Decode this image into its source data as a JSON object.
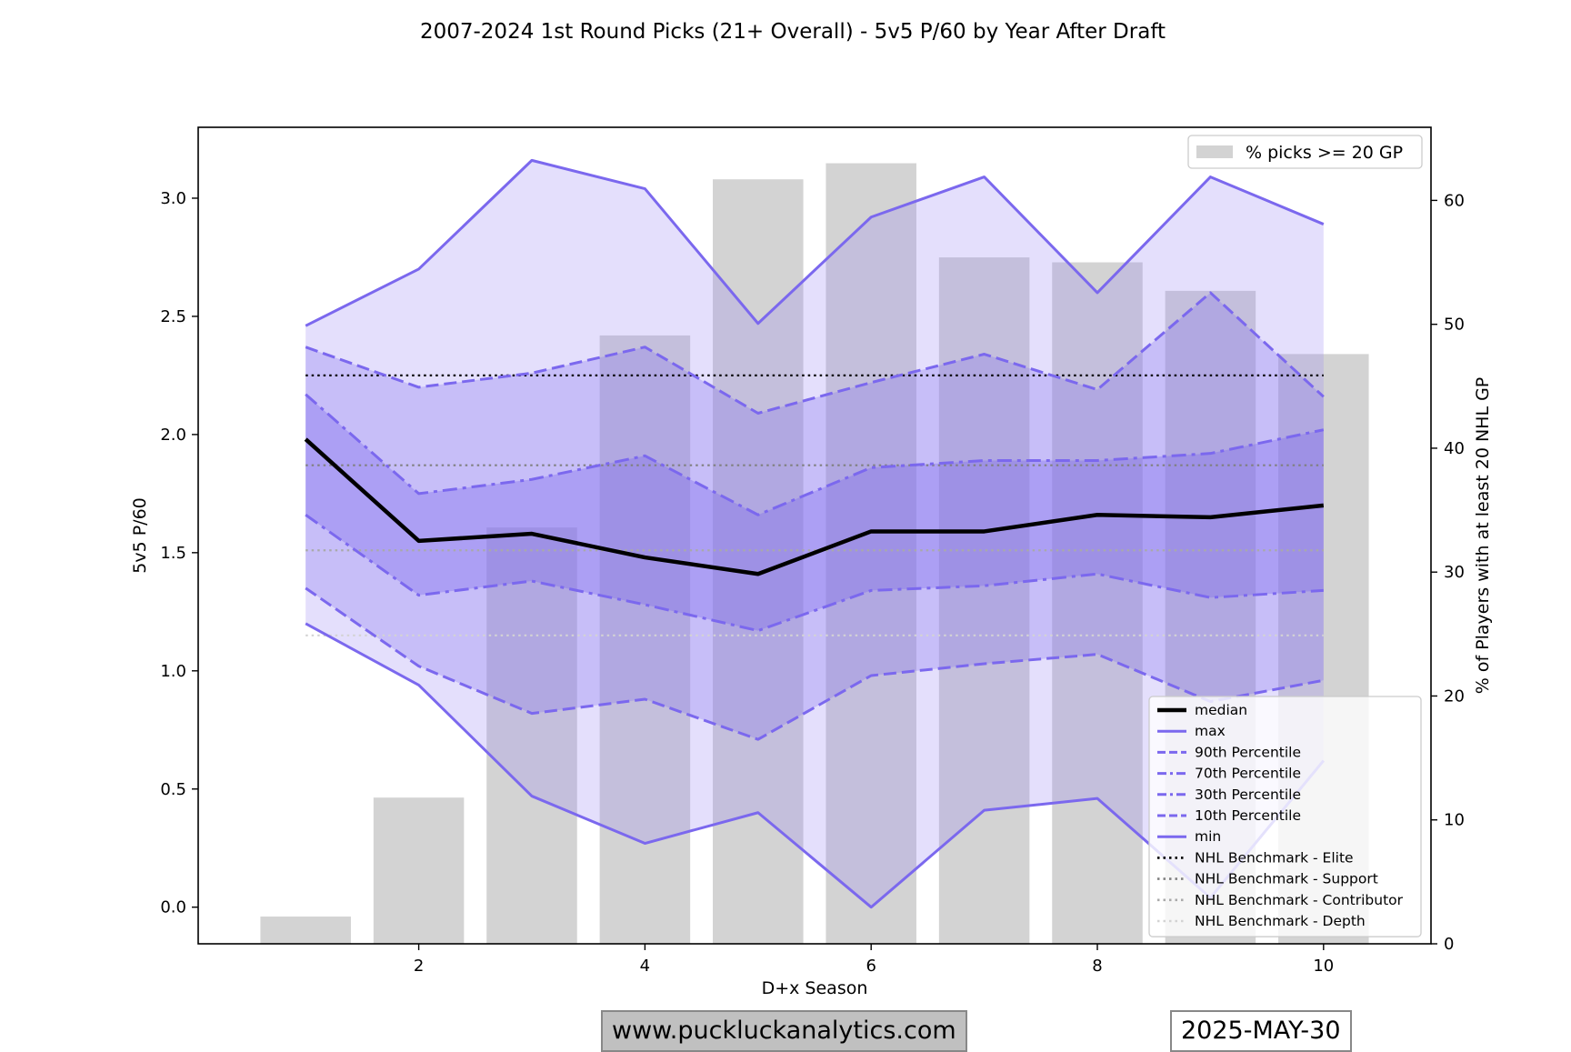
{
  "chart_data": {
    "type": "line",
    "title": "2007-2024 1st Round Picks (21+ Overall) - 5v5 P/60 by Year After Draft",
    "xlabel": "D+x Season",
    "ylabel": "5v5 P/60",
    "y2label": "% of Players with at least 20 NHL GP",
    "xlim": [
      0.05,
      10.95
    ],
    "ylim": [
      -0.155,
      3.3
    ],
    "y2lim": [
      0,
      65.9
    ],
    "xticks": [
      2,
      4,
      6,
      8,
      10
    ],
    "yticks": [
      0.0,
      0.5,
      1.0,
      1.5,
      2.0,
      2.5,
      3.0
    ],
    "y2ticks": [
      0,
      10,
      20,
      30,
      40,
      50,
      60
    ],
    "x": [
      1,
      2,
      3,
      4,
      5,
      6,
      7,
      8,
      9,
      10
    ],
    "bars": {
      "name": "% picks >= 20 GP",
      "color": "#d3d3d3",
      "values": [
        2.2,
        11.8,
        33.6,
        49.1,
        61.7,
        63.0,
        55.4,
        55.0,
        52.7,
        47.6
      ]
    },
    "series": [
      {
        "name": "median",
        "color": "#000000",
        "style": "solid",
        "width": 4.5,
        "values": [
          1.98,
          1.55,
          1.58,
          1.48,
          1.41,
          1.59,
          1.59,
          1.66,
          1.65,
          1.7
        ]
      },
      {
        "name": "max",
        "color": "#7b68ee",
        "style": "solid",
        "width": 3,
        "values": [
          2.46,
          2.7,
          3.16,
          3.04,
          2.47,
          2.92,
          3.09,
          2.6,
          3.09,
          2.89
        ]
      },
      {
        "name": "90th Percentile",
        "color": "#7b68ee",
        "style": "dashed",
        "width": 3,
        "values": [
          2.37,
          2.2,
          2.26,
          2.37,
          2.09,
          2.22,
          2.34,
          2.19,
          2.6,
          2.16
        ]
      },
      {
        "name": "70th Percentile",
        "color": "#7b68ee",
        "style": "dashdot",
        "width": 3,
        "values": [
          2.17,
          1.75,
          1.81,
          1.91,
          1.66,
          1.86,
          1.89,
          1.89,
          1.92,
          2.02
        ]
      },
      {
        "name": "30th Percentile",
        "color": "#7b68ee",
        "style": "dashdot",
        "width": 3,
        "values": [
          1.66,
          1.32,
          1.38,
          1.28,
          1.17,
          1.34,
          1.36,
          1.41,
          1.31,
          1.34
        ]
      },
      {
        "name": "10th Percentile",
        "color": "#7b68ee",
        "style": "dashed",
        "width": 3,
        "values": [
          1.35,
          1.02,
          0.82,
          0.88,
          0.71,
          0.98,
          1.03,
          1.07,
          0.87,
          0.96
        ]
      },
      {
        "name": "min",
        "color": "#7b68ee",
        "style": "solid",
        "width": 3,
        "values": [
          1.2,
          0.94,
          0.47,
          0.27,
          0.4,
          0.0,
          0.41,
          0.46,
          0.04,
          0.62
        ]
      }
    ],
    "bands": [
      {
        "lower": "min",
        "upper": "max",
        "color": "#9d8cf5",
        "opacity": 0.28
      },
      {
        "lower": "10th Percentile",
        "upper": "90th Percentile",
        "color": "#8573f0",
        "opacity": 0.3
      },
      {
        "lower": "30th Percentile",
        "upper": "70th Percentile",
        "color": "#7b68ee",
        "opacity": 0.35
      }
    ],
    "benchmarks": [
      {
        "name": "NHL Benchmark - Elite",
        "value": 2.25,
        "color": "#000000"
      },
      {
        "name": "NHL Benchmark - Support",
        "value": 1.87,
        "color": "#808080"
      },
      {
        "name": "NHL Benchmark - Contributor",
        "value": 1.51,
        "color": "#a9a9a9"
      },
      {
        "name": "NHL Benchmark - Depth",
        "value": 1.15,
        "color": "#d3d3d3"
      }
    ],
    "legend_bars_position": "top-right",
    "legend_lines_position": "lower-right",
    "grid": false
  },
  "footer": {
    "website": "www.puckluckanalytics.com",
    "date": "2025-MAY-30"
  }
}
